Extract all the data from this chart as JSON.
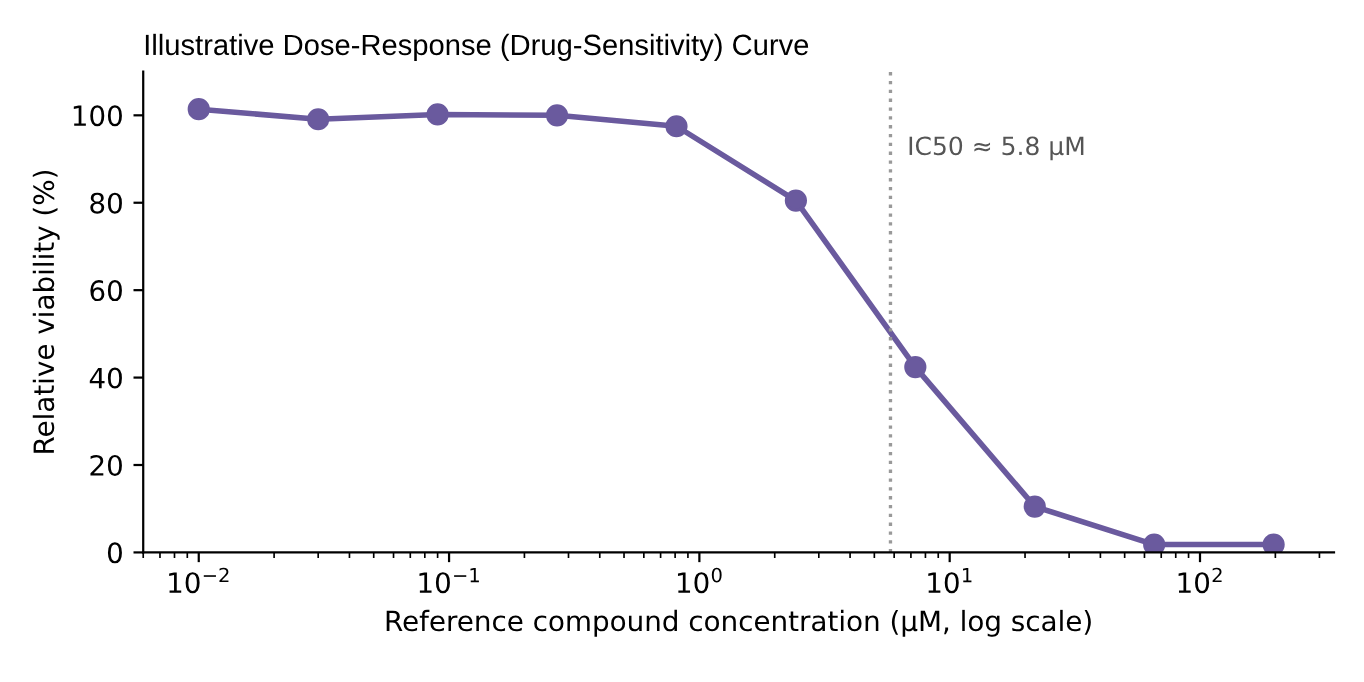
{
  "chart_data": {
    "type": "line",
    "title": "Illustrative Dose-Response (Drug-Sensitivity) Curve",
    "xlabel": "Reference compound concentration (μM, log scale)",
    "ylabel": "Relative viability (%)",
    "x": [
      0.01,
      0.03,
      0.09,
      0.27,
      0.81,
      2.43,
      7.29,
      21.87,
      65.61,
      196.83
    ],
    "series": [
      {
        "color": "#6a5a9e",
        "values": [
          101.4,
          99.1,
          100.2,
          100,
          97.5,
          80.5,
          42.4,
          10.5,
          1.8,
          1.8
        ]
      }
    ],
    "log": "x",
    "xlim": [
      0.006,
      343
    ],
    "xticks": [
      {
        "value": 0.01,
        "label": "10$^{−2}$"
      },
      {
        "value": 0.1,
        "label": "10$^{−1}$"
      },
      {
        "value": 1,
        "label": "10$^{0}$"
      },
      {
        "value": 10,
        "label": "10$^{1}$"
      },
      {
        "value": 100,
        "label": "10$^{2}$"
      }
    ],
    "ylim": [
      0,
      110
    ],
    "yticks": [
      0,
      20,
      40,
      60,
      80,
      100
    ],
    "marker": "circle",
    "line_style": "solid",
    "grid": false,
    "legend": false,
    "ref_lines": [
      {
        "axis": "x",
        "value": 5.8,
        "label": "IC50 ≈ 5.8 μM",
        "color": "#999999",
        "line_style": "dotted"
      }
    ]
  }
}
